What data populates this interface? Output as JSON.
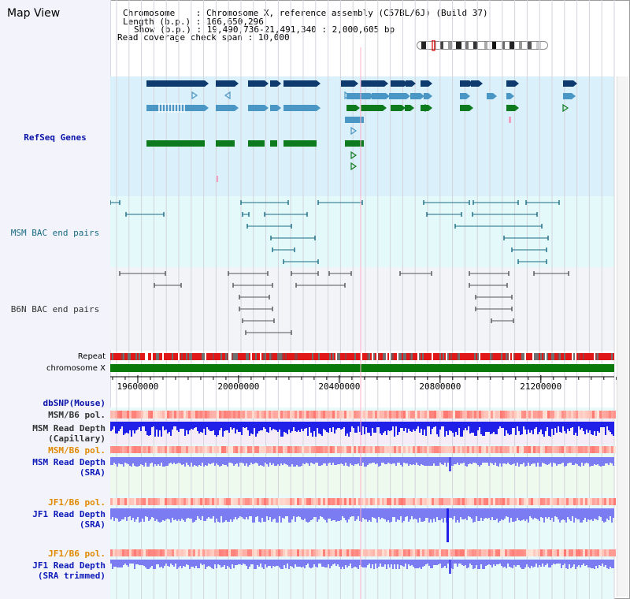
{
  "title": "Map View",
  "info": {
    "chromosome_label": "Chromosome",
    "chromosome_value": "Chromosome X, reference assembly (C57BL/6J) (Build 37)",
    "length_label": "Length (b.p.)",
    "length_value": "166,650,296",
    "show_label": "Show (b.p.)",
    "show_value": "19,490,736-21,491,340 : 2,000,605 bp",
    "coverage_label": "Read coverage check span",
    "coverage_value": "10,000"
  },
  "tracks": {
    "refseq": "RefSeq Genes",
    "msm_bac": "MSM BAC end pairs",
    "b6n_bac": "B6N BAC end pairs",
    "repeat": "Repeat",
    "chromosome": "chromosome X",
    "dbsnp": "dbSNP(Mouse)",
    "msm_pol": "MSM/B6 pol.",
    "msm_depth_cap_1": "MSM Read Depth",
    "msm_depth_cap_2": "(Capillary)",
    "msm_pol2": "MSM/B6 pol.",
    "msm_depth_sra_1": "MSM Read Depth",
    "msm_depth_sra_2": "(SRA)",
    "jf1_pol": "JF1/B6 pol.",
    "jf1_depth_sra_1": "JF1 Read Depth",
    "jf1_depth_sra_2": "(SRA)",
    "jf1_pol2": "JF1/B6 pol.",
    "jf1_depth_trim_1": "JF1 Read Depth",
    "jf1_depth_trim_2": "(SRA trimmed)"
  },
  "ruler": {
    "ticks": [
      "19600000",
      "20000000",
      "20400000",
      "20800000",
      "21200000"
    ],
    "range": [
      19490736,
      21491340
    ]
  },
  "colors": {
    "refseq_bg": "#daf0fa",
    "msm_bg": "#e4fafa",
    "b6n_bg": "#f2f4f8",
    "gene_dark": "#0e3a6e",
    "gene_mid": "#4a96c4",
    "gene_green": "#0e7a1e",
    "chromosome_bar": "#0a7a0a",
    "depth_blue": "#2020e8",
    "depth_light": "#7c7cf2"
  }
}
